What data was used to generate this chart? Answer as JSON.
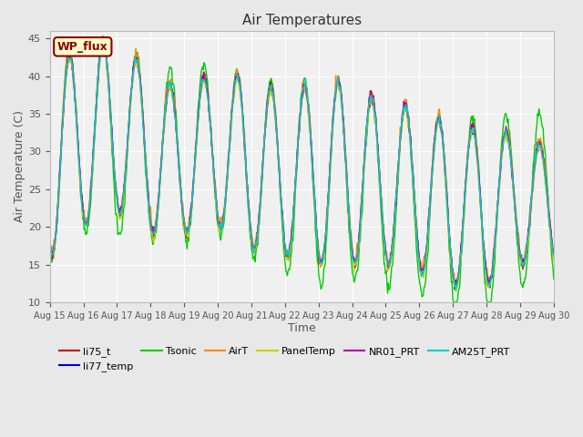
{
  "title": "Air Temperatures",
  "xlabel": "Time",
  "ylabel": "Air Temperature (C)",
  "ylim": [
    10,
    46
  ],
  "yticks": [
    10,
    15,
    20,
    25,
    30,
    35,
    40,
    45
  ],
  "x_tick_labels": [
    "Aug 15",
    "Aug 16",
    "Aug 17",
    "Aug 18",
    "Aug 19",
    "Aug 20",
    "Aug 21",
    "Aug 22",
    "Aug 23",
    "Aug 24",
    "Aug 25",
    "Aug 26",
    "Aug 27",
    "Aug 28",
    "Aug 29",
    "Aug 30"
  ],
  "annotation_text": "WP_flux",
  "annotation_bg": "#ffffcc",
  "annotation_border": "#8B0000",
  "annotation_text_color": "#8B0000",
  "line_colors": {
    "li75_t": "#cc0000",
    "li77_temp": "#0000cc",
    "Tsonic": "#00cc00",
    "AirT": "#ff8800",
    "PanelTemp": "#cccc00",
    "NR01_PRT": "#aa00aa",
    "AM25T_PRT": "#00cccc"
  },
  "bg_color": "#e8e8e8",
  "plot_bg": "#f0f0f0",
  "n_days": 15,
  "pts_per_day": 48
}
